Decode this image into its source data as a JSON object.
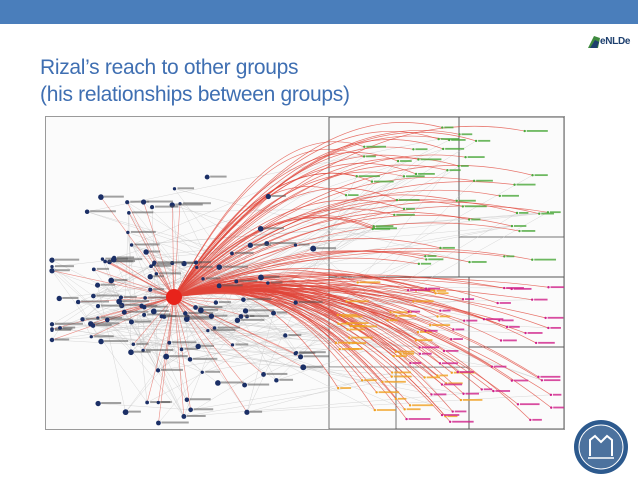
{
  "slide": {
    "title_line1": "Rizal’s reach to other groups",
    "title_line2": "(his relationships between groups)"
  },
  "logo": {
    "text": "eNLDe",
    "accent": "#3e8a3e"
  },
  "colors": {
    "topbar": "#4a7ebb",
    "title": "#3f6fb2",
    "hub": "#e8231b",
    "edges_red": "#e0463a",
    "edges_gray": "#c8c8c8",
    "green_group": "#4aa83a",
    "orange_group": "#f0a020",
    "magenta_group": "#d0208a",
    "node_blue": "#1b2f66"
  },
  "seal": {
    "icon": "university-seal-icon"
  }
}
